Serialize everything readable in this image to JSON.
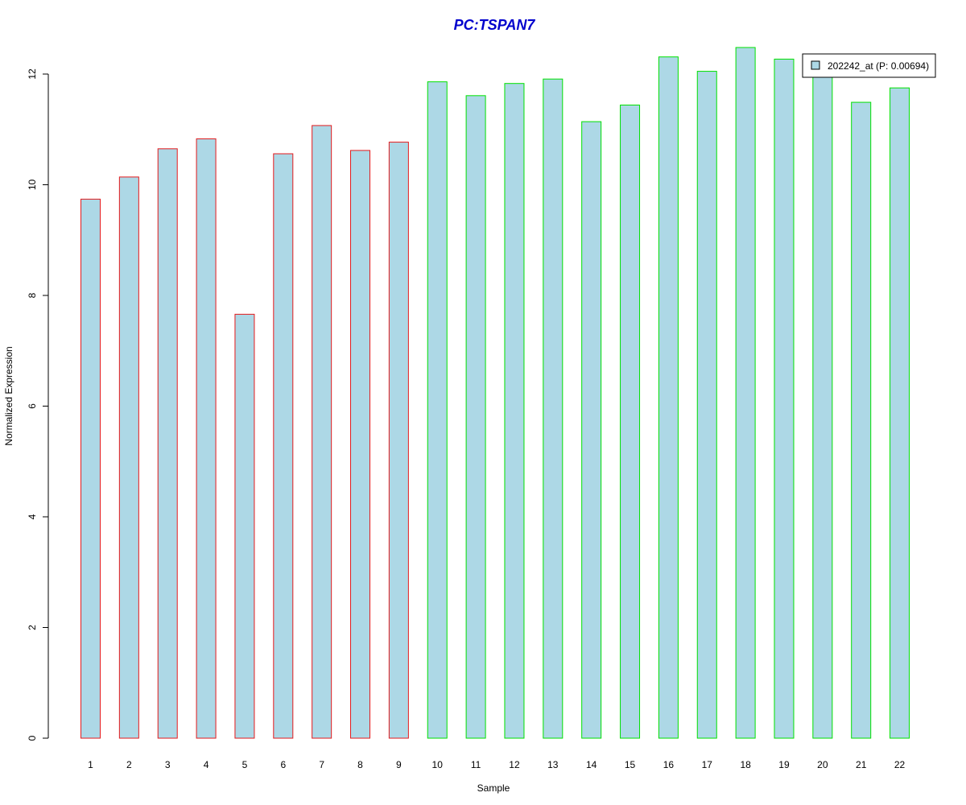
{
  "chart_data": {
    "type": "bar",
    "title": "PC:TSPAN7",
    "xlabel": "Sample",
    "ylabel": "Normalized Expression",
    "categories": [
      "1",
      "2",
      "3",
      "4",
      "5",
      "6",
      "7",
      "8",
      "9",
      "10",
      "11",
      "12",
      "13",
      "14",
      "15",
      "16",
      "17",
      "18",
      "19",
      "20",
      "21",
      "22"
    ],
    "series": [
      {
        "name": "202242_at (P: 0.00694)",
        "values": [
          9.74,
          10.14,
          10.65,
          10.83,
          7.66,
          10.56,
          11.07,
          10.62,
          10.77,
          11.86,
          11.61,
          11.83,
          11.91,
          11.14,
          11.44,
          12.31,
          12.05,
          12.48,
          12.27,
          12.0,
          11.49,
          11.75
        ]
      }
    ],
    "group_colors": [
      "#E41A1C",
      "#E41A1C",
      "#E41A1C",
      "#E41A1C",
      "#E41A1C",
      "#E41A1C",
      "#E41A1C",
      "#E41A1C",
      "#E41A1C",
      "#00E000",
      "#00E000",
      "#00E000",
      "#00E000",
      "#00E000",
      "#00E000",
      "#00E000",
      "#00E000",
      "#00E000",
      "#00E000",
      "#00E000",
      "#00E000",
      "#00E000"
    ],
    "bar_fill": "#ADD8E6",
    "title_color": "#0000CD",
    "ylim": [
      0,
      12.5
    ],
    "yticks": [
      0,
      2,
      4,
      6,
      8,
      10,
      12
    ],
    "legend_position": "top-right",
    "grid": false
  }
}
